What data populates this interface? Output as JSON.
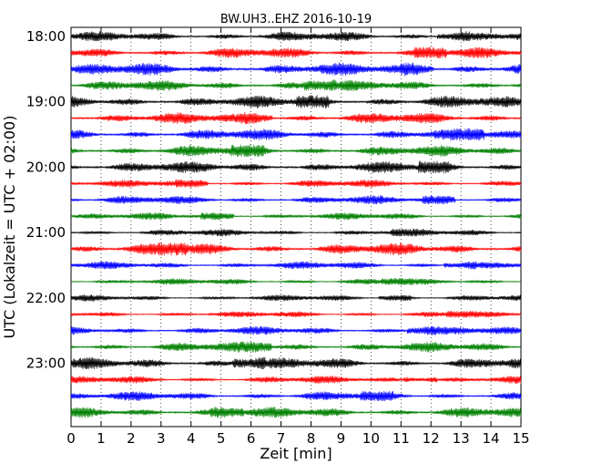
{
  "chart_data": {
    "type": "line",
    "title": "BW.UH3..EHZ 2016-10-19",
    "xlabel": "Zeit  [min]",
    "ylabel": "UTC (Lokalzeit = UTC + 02:00)",
    "xlim": [
      0,
      15
    ],
    "x_ticks": [
      "0",
      "1",
      "2",
      "3",
      "4",
      "5",
      "6",
      "7",
      "8",
      "9",
      "10",
      "11",
      "12",
      "13",
      "14",
      "15"
    ],
    "y_tick_labels": [
      {
        "label": "18:00",
        "row": 0
      },
      {
        "label": "19:00",
        "row": 4
      },
      {
        "label": "20:00",
        "row": 8
      },
      {
        "label": "21:00",
        "row": 12
      },
      {
        "label": "22:00",
        "row": 16
      },
      {
        "label": "23:00",
        "row": 20
      }
    ],
    "row_interval_min": 15,
    "grid": "vertical dotted",
    "color_cycle": [
      "#000000",
      "#ff0000",
      "#0000ff",
      "#008000"
    ],
    "rows": [
      {
        "start": "18:00",
        "color": "#000000",
        "amp": 0.7
      },
      {
        "start": "18:15",
        "color": "#ff0000",
        "amp": 0.75
      },
      {
        "start": "18:30",
        "color": "#0000ff",
        "amp": 0.9
      },
      {
        "start": "18:45",
        "color": "#008000",
        "amp": 0.75
      },
      {
        "start": "19:00",
        "color": "#000000",
        "amp": 0.85
      },
      {
        "start": "19:15",
        "color": "#ff0000",
        "amp": 0.8
      },
      {
        "start": "19:30",
        "color": "#0000ff",
        "amp": 0.8
      },
      {
        "start": "19:45",
        "color": "#008000",
        "amp": 0.8
      },
      {
        "start": "20:00",
        "color": "#000000",
        "amp": 0.8
      },
      {
        "start": "20:15",
        "color": "#ff0000",
        "amp": 0.55
      },
      {
        "start": "20:30",
        "color": "#0000ff",
        "amp": 0.6
      },
      {
        "start": "20:45",
        "color": "#008000",
        "amp": 0.5
      },
      {
        "start": "21:00",
        "color": "#000000",
        "amp": 0.5
      },
      {
        "start": "21:15",
        "color": "#ff0000",
        "amp": 0.85
      },
      {
        "start": "21:30",
        "color": "#0000ff",
        "amp": 0.55
      },
      {
        "start": "21:45",
        "color": "#008000",
        "amp": 0.45
      },
      {
        "start": "22:00",
        "color": "#000000",
        "amp": 0.45
      },
      {
        "start": "22:15",
        "color": "#ff0000",
        "amp": 0.45
      },
      {
        "start": "22:30",
        "color": "#0000ff",
        "amp": 0.6
      },
      {
        "start": "22:45",
        "color": "#008000",
        "amp": 0.7
      },
      {
        "start": "23:00",
        "color": "#000000",
        "amp": 0.8
      },
      {
        "start": "23:15",
        "color": "#ff0000",
        "amp": 0.55
      },
      {
        "start": "23:30",
        "color": "#0000ff",
        "amp": 0.65
      },
      {
        "start": "23:45",
        "color": "#008000",
        "amp": 0.75
      }
    ]
  }
}
